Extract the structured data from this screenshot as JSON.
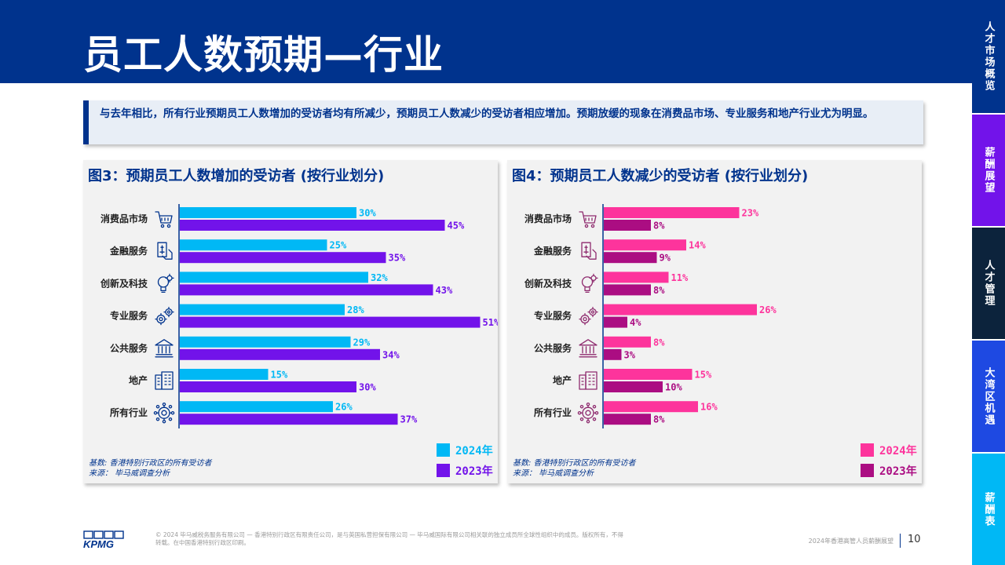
{
  "page": {
    "title": "员工人数预期—行业",
    "summary": "与去年相比，所有行业预期员工人数增加的受访者均有所减少，预期员工人数减少的受访者相应增加。预期放缓的现象在消费品市场、专业服务和地产行业尤为明显。"
  },
  "side_nav": {
    "items": [
      {
        "label": "人才市场概览",
        "color": "#00338D"
      },
      {
        "label": "薪酬展望",
        "color": "#7213EA"
      },
      {
        "label": "人才管理",
        "color": "#0C233C"
      },
      {
        "label": "大湾区机遇",
        "color": "#1E49E2"
      },
      {
        "label": "薪酬表",
        "color": "#00B8F5"
      }
    ]
  },
  "chart_data": [
    {
      "type": "bar",
      "orientation": "horizontal",
      "title": "图3：预期员工人数增加的受访者 (按行业划分)",
      "categories": [
        "消费品市场",
        "金融服务",
        "创新及科技",
        "专业服务",
        "公共服务",
        "地产",
        "所有行业"
      ],
      "icons": [
        "cart-icon",
        "finance-icon",
        "bulb-gear-icon",
        "gears-icon",
        "bank-icon",
        "building-icon",
        "gear-network-icon"
      ],
      "series": [
        {
          "name": "2024年",
          "values": [
            30,
            25,
            32,
            28,
            29,
            15,
            26
          ],
          "color": "#00B8F5"
        },
        {
          "name": "2023年",
          "values": [
            45,
            35,
            43,
            51,
            34,
            30,
            37
          ],
          "color": "#7213EA"
        }
      ],
      "value_suffix": "%",
      "legend_position": "bottom-right",
      "notes": [
        "基数: 香港特别行政区的所有受访者",
        "来源： 毕马威调查分析"
      ]
    },
    {
      "type": "bar",
      "orientation": "horizontal",
      "title": "图4：预期员工人数减少的受访者 (按行业划分)",
      "categories": [
        "消费品市场",
        "金融服务",
        "创新及科技",
        "专业服务",
        "公共服务",
        "地产",
        "所有行业"
      ],
      "icons": [
        "cart-icon",
        "finance-icon",
        "bulb-gear-icon",
        "gears-icon",
        "bank-icon",
        "building-icon",
        "gear-network-icon"
      ],
      "series": [
        {
          "name": "2024年",
          "values": [
            23,
            14,
            11,
            26,
            8,
            15,
            16
          ],
          "color": "#FD349C"
        },
        {
          "name": "2023年",
          "values": [
            8,
            9,
            8,
            4,
            3,
            10,
            8
          ],
          "color": "#AB0D82"
        }
      ],
      "value_suffix": "%",
      "legend_position": "bottom-right",
      "notes": [
        "基数: 香港特别行政区的所有受访者",
        "来源： 毕马威调查分析"
      ]
    }
  ],
  "footer": {
    "logo_text": "KPMG",
    "legal": "© 2024 毕马威税务服务有限公司 — 香港特别行政区有限责任公司，是与英国私营担保有限公司 — 毕马威国际有限公司相关联的独立成员所全球性组织中的成员。版权所有，不得转载。在中国香港特别行政区印刷。",
    "report_name": "2024年香港高管人员薪酬展望",
    "page_number": "10"
  },
  "colors": {
    "brand_blue": "#00338D",
    "panel_bg": "#F2F2F2",
    "summary_bg": "#E8EEF6"
  }
}
